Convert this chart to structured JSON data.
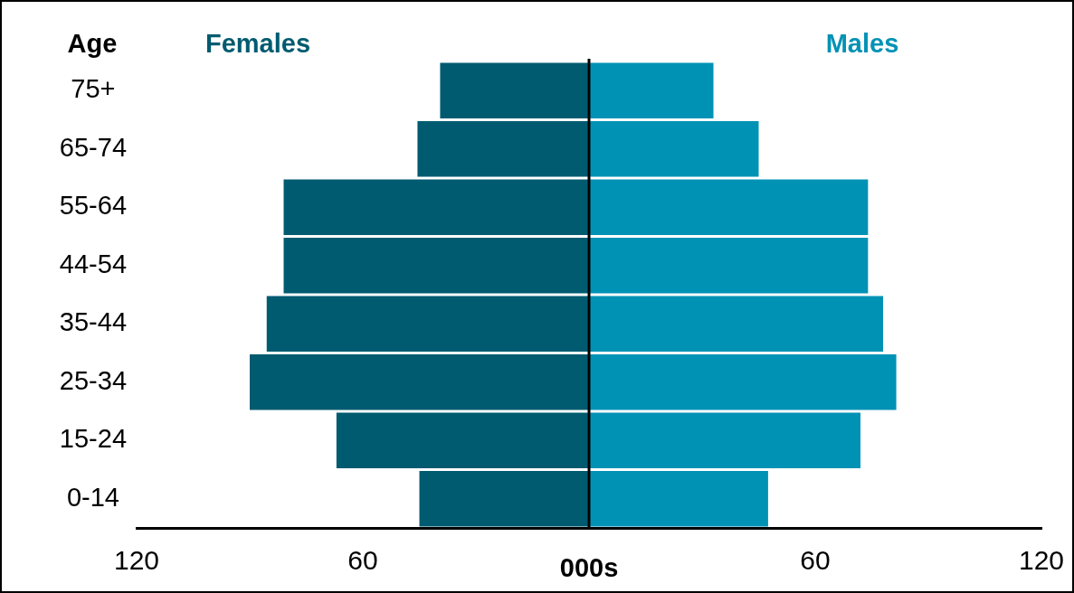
{
  "chart_data": {
    "type": "bar",
    "orientation": "horizontal",
    "stacked": true,
    "ylabel": "Age",
    "xlabel": "000s",
    "categories": [
      "75+",
      "65-74",
      "55-64",
      "44-54",
      "35-44",
      "25-34",
      "15-24",
      "0-14"
    ],
    "series": [
      {
        "name": "Females",
        "color": "#005b70",
        "values": [
          -39.5,
          -45.5,
          -81,
          -81,
          -85.5,
          -90,
          -67,
          -45
        ]
      },
      {
        "name": "Males",
        "color": "#0092b5",
        "values": [
          33,
          45,
          74,
          74,
          78,
          81.5,
          72,
          47.5
        ]
      }
    ],
    "xlim": [
      -120,
      120
    ],
    "xticks": [
      {
        "value": -120,
        "label": "120"
      },
      {
        "value": -60,
        "label": "60"
      },
      {
        "value": 0,
        "label": null
      },
      60,
      120
    ],
    "ref_lines": [
      {
        "axis": "x",
        "value": 0,
        "color": "#000000"
      }
    ],
    "grid": false,
    "legend": false
  }
}
